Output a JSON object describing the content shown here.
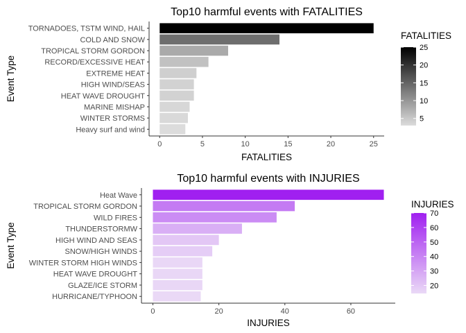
{
  "chart_data": [
    {
      "type": "bar",
      "orientation": "horizontal",
      "title": "Top10 harmful events with FATALITIES",
      "xlabel": "FATALITIES",
      "ylabel": "Event Type",
      "categories": [
        "TORNADOES, TSTM WIND, HAIL",
        "COLD AND SNOW",
        "TROPICAL STORM GORDON",
        "RECORD/EXCESSIVE HEAT",
        "EXTREME HEAT",
        "HIGH WIND/SEAS",
        "HEAT WAVE DROUGHT",
        "MARINE MISHAP",
        "WINTER STORMS",
        "Heavy surf and wind"
      ],
      "values": [
        25,
        14,
        8,
        5.7,
        4.3,
        4,
        4,
        3.5,
        3.3,
        3
      ],
      "xlim": [
        0,
        25
      ],
      "xticks": [
        0,
        5,
        10,
        15,
        20,
        25
      ],
      "legend": {
        "title": "FATALITIES",
        "ticks": [
          5,
          10,
          15,
          20,
          25
        ],
        "range": [
          3,
          25
        ],
        "low_color": "#dcdcdc",
        "high_color": "#000000",
        "position": "right"
      },
      "grid": false
    },
    {
      "type": "bar",
      "orientation": "horizontal",
      "title": "Top10 harmful events with INJURIES",
      "xlabel": "INJURIES",
      "ylabel": "Event Type",
      "categories": [
        "Heat Wave",
        "TROPICAL STORM GORDON",
        "WILD FIRES",
        "THUNDERSTORMW",
        "HIGH WIND AND SEAS",
        "SNOW/HIGH WINDS",
        "WINTER STORM HIGH WINDS",
        "HEAT WAVE DROUGHT",
        "GLAZE/ICE STORM",
        "HURRICANE/TYPHOON"
      ],
      "values": [
        70,
        43,
        37.5,
        27,
        20,
        18,
        15,
        15,
        15,
        14.5
      ],
      "xlim": [
        0,
        70
      ],
      "xticks": [
        0,
        20,
        40,
        60
      ],
      "legend": {
        "title": "INJURIES",
        "ticks": [
          20,
          30,
          40,
          50,
          60,
          70
        ],
        "range": [
          14.5,
          70
        ],
        "low_color": "#ead9f6",
        "high_color": "#a020f0",
        "position": "right"
      },
      "grid": false
    }
  ]
}
